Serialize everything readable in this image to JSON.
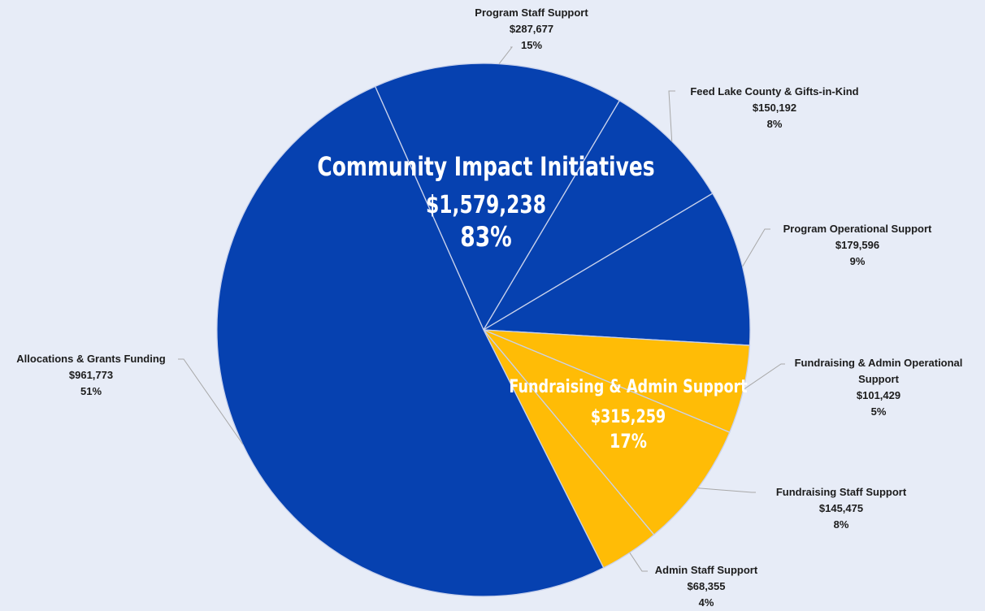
{
  "chart_data": {
    "type": "pie",
    "colors": {
      "community": "#0641b0",
      "fundraising": "#ffbc06",
      "separator": "#c9d2ec",
      "background": "#e7ecf7"
    },
    "slices": [
      {
        "label": "Program Staff Support",
        "amount": "$287,677",
        "pct_label": "15%",
        "value": 287677,
        "group": "community"
      },
      {
        "label": "Feed Lake County & Gifts-in-Kind",
        "amount": "$150,192",
        "pct_label": "8%",
        "value": 150192,
        "group": "community"
      },
      {
        "label": "Program Operational Support",
        "amount": "$179,596",
        "pct_label": "9%",
        "value": 179596,
        "group": "community"
      },
      {
        "label": [
          "Fundraising & Admin Operational",
          "Support"
        ],
        "amount": "$101,429",
        "pct_label": "5%",
        "value": 101429,
        "group": "fundraising"
      },
      {
        "label": "Fundraising Staff Support",
        "amount": "$145,475",
        "pct_label": "8%",
        "value": 145475,
        "group": "fundraising"
      },
      {
        "label": "Admin Staff Support",
        "amount": "$68,355",
        "pct_label": "4%",
        "value": 68355,
        "group": "fundraising"
      },
      {
        "label": "Allocations & Grants Funding",
        "amount": "$961,773",
        "pct_label": "51%",
        "value": 961773,
        "group": "community"
      }
    ],
    "groups": [
      {
        "id": "community",
        "title": "Community Impact  Initiatives",
        "amount": "$1,579,238",
        "pct_label": "83%"
      },
      {
        "id": "fundraising",
        "title": "Fundraising & Admin Support",
        "amount": "$315,259",
        "pct_label": "17%"
      }
    ]
  }
}
